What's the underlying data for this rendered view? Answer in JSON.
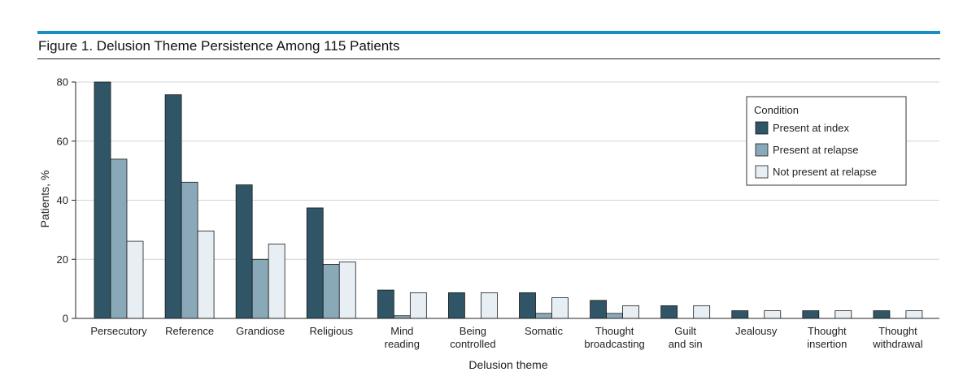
{
  "figure": {
    "title": "Figure 1. Delusion Theme Persistence Among 115 Patients"
  },
  "colors": {
    "accent_bar": "#1b8fc0"
  },
  "chart_data": {
    "type": "bar",
    "xlabel": "Delusion theme",
    "ylabel": "Patients, %",
    "ylim": [
      0,
      80
    ],
    "yticks": [
      0,
      20,
      40,
      60,
      80
    ],
    "grid": true,
    "legend": {
      "title": "Condition",
      "placement": "top-right"
    },
    "categories": [
      [
        "Persecutory"
      ],
      [
        "Reference"
      ],
      [
        "Grandiose"
      ],
      [
        "Religious"
      ],
      [
        "Mind",
        "reading"
      ],
      [
        "Being",
        "controlled"
      ],
      [
        "Somatic"
      ],
      [
        "Thought",
        "broadcasting"
      ],
      [
        "Guilt",
        "and sin"
      ],
      [
        "Jealousy"
      ],
      [
        "Thought",
        "insertion"
      ],
      [
        "Thought",
        "withdrawal"
      ]
    ],
    "series": [
      {
        "name": "Present at index",
        "color": "#2f5566",
        "values": [
          80,
          75.7,
          45.2,
          37.4,
          9.6,
          8.7,
          8.7,
          6.1,
          4.3,
          2.6,
          2.6,
          2.6
        ]
      },
      {
        "name": "Present at relapse",
        "color": "#8aa9b8",
        "values": [
          53.9,
          46.1,
          20,
          18.3,
          0.9,
          0,
          1.7,
          1.7,
          0,
          0,
          0,
          0
        ]
      },
      {
        "name": "Not present at relapse",
        "color": "#e8eff4",
        "values": [
          26.1,
          29.6,
          25.2,
          19.1,
          8.7,
          8.7,
          7,
          4.3,
          4.3,
          2.6,
          2.6,
          2.6
        ]
      }
    ]
  }
}
